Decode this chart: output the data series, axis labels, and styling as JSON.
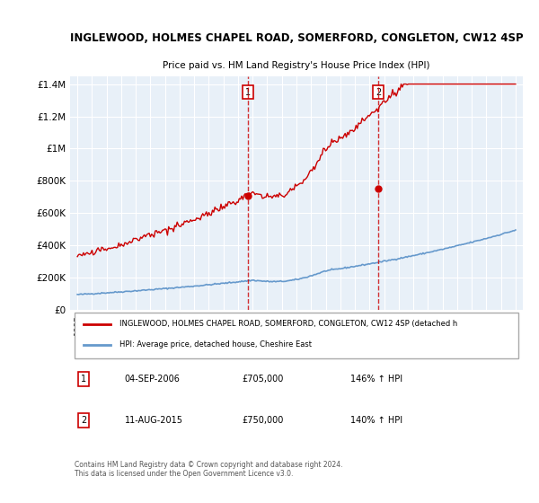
{
  "title": "INGLEWOOD, HOLMES CHAPEL ROAD, SOMERFORD, CONGLETON, CW12 4SP",
  "subtitle": "Price paid vs. HM Land Registry's House Price Index (HPI)",
  "background_color": "#ffffff",
  "plot_bg_color": "#e8f0f8",
  "ylim": [
    0,
    1450000
  ],
  "yticks": [
    0,
    200000,
    400000,
    600000,
    800000,
    1000000,
    1200000,
    1400000
  ],
  "ytick_labels": [
    "£0",
    "£200K",
    "£400K",
    "£600K",
    "£800K",
    "£1M",
    "£1.2M",
    "£1.4M"
  ],
  "sale1_year": 2006.67,
  "sale1_price": 705000,
  "sale1_label": "1",
  "sale1_date": "04-SEP-2006",
  "sale1_hpi": "146% ↑ HPI",
  "sale2_year": 2015.6,
  "sale2_price": 750000,
  "sale2_label": "2",
  "sale2_date": "11-AUG-2015",
  "sale2_hpi": "140% ↑ HPI",
  "legend_line1": "INGLEWOOD, HOLMES CHAPEL ROAD, SOMERFORD, CONGLETON, CW12 4SP (detached h",
  "legend_line2": "HPI: Average price, detached house, Cheshire East",
  "footer": "Contains HM Land Registry data © Crown copyright and database right 2024.\nThis data is licensed under the Open Government Licence v3.0.",
  "hpi_color": "#6699cc",
  "price_color": "#cc0000",
  "marker_color": "#cc0000",
  "vline_color": "#cc0000",
  "box_color": "#cc0000"
}
